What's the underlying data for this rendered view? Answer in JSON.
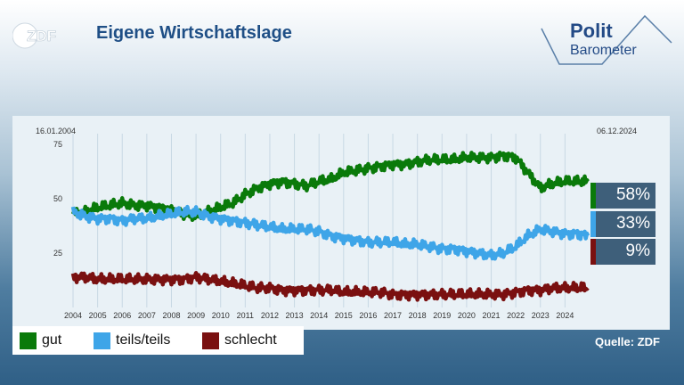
{
  "header": {
    "logo_text": "ZDF",
    "title": "Eigene Wirtschaftslage",
    "brand_line1": "Polit",
    "brand_line2": "Barometer"
  },
  "footer": {
    "source": "Quelle: ZDF"
  },
  "colors": {
    "gut": "#0a7a0a",
    "teils": "#3ea5e8",
    "schlecht": "#7a1010",
    "badge_bg": "#3e5f7a"
  },
  "badges": [
    {
      "series": "gut",
      "label": "58%",
      "color": "#0a7a0a"
    },
    {
      "series": "teils/teils",
      "label": "33%",
      "color": "#3ea5e8"
    },
    {
      "series": "schlecht",
      "label": "9%",
      "color": "#7a1010"
    }
  ],
  "chart_data": {
    "type": "line",
    "title": "Eigene Wirtschaftslage",
    "date_start": "16.01.2004",
    "date_end": "06.12.2024",
    "xlabel": "",
    "ylabel": "",
    "ylim": [
      0,
      80
    ],
    "yticks": [
      25,
      50,
      75
    ],
    "xticks": [
      "2004",
      "2005",
      "2006",
      "2007",
      "2008",
      "2009",
      "2010",
      "2011",
      "2012",
      "2013",
      "2014",
      "2015",
      "2016",
      "2017",
      "2018",
      "2019",
      "2020",
      "2021",
      "2022",
      "2023",
      "2024"
    ],
    "grid": "vertical",
    "legend": "bottom-left",
    "x": [
      2004.0,
      2004.5,
      2005.0,
      2005.5,
      2006.0,
      2006.5,
      2007.0,
      2007.5,
      2008.0,
      2008.5,
      2009.0,
      2009.5,
      2010.0,
      2010.5,
      2011.0,
      2011.5,
      2012.0,
      2012.5,
      2013.0,
      2013.5,
      2014.0,
      2014.5,
      2015.0,
      2015.5,
      2016.0,
      2016.5,
      2017.0,
      2017.5,
      2018.0,
      2018.5,
      2019.0,
      2019.5,
      2020.0,
      2020.5,
      2021.0,
      2021.5,
      2022.0,
      2022.5,
      2023.0,
      2023.5,
      2024.0,
      2024.5,
      2024.93
    ],
    "series": [
      {
        "name": "gut",
        "color": "#0a7a0a",
        "values": [
          43,
          44,
          46,
          47,
          48,
          47,
          47,
          46,
          45,
          43,
          42,
          44,
          46,
          48,
          52,
          55,
          57,
          58,
          57,
          56,
          58,
          59,
          62,
          63,
          64,
          65,
          66,
          66,
          67,
          68,
          68,
          68,
          69,
          69,
          69,
          70,
          69,
          62,
          55,
          57,
          58,
          58,
          58
        ]
      },
      {
        "name": "teils/teils",
        "color": "#3ea5e8",
        "values": [
          44,
          42,
          41,
          41,
          40,
          41,
          41,
          42,
          43,
          44,
          44,
          42,
          41,
          40,
          39,
          38,
          37,
          36,
          36,
          36,
          35,
          33,
          32,
          31,
          30,
          30,
          30,
          29,
          29,
          28,
          27,
          27,
          26,
          25,
          24,
          25,
          28,
          33,
          36,
          35,
          34,
          34,
          33
        ]
      },
      {
        "name": "schlecht",
        "color": "#7a1010",
        "values": [
          14,
          14,
          13,
          13,
          13,
          13,
          13,
          13,
          13,
          13,
          14,
          13,
          12,
          11,
          10,
          9,
          9,
          8,
          8,
          8,
          8,
          8,
          7,
          7,
          7,
          7,
          6,
          6,
          6,
          6,
          6,
          6,
          6,
          6,
          6,
          6,
          7,
          8,
          8,
          9,
          9,
          9,
          9
        ]
      }
    ]
  },
  "legend_items": [
    {
      "label": "gut",
      "color": "#0a7a0a"
    },
    {
      "label": "teils/teils",
      "color": "#3ea5e8"
    },
    {
      "label": "schlecht",
      "color": "#7a1010"
    }
  ]
}
